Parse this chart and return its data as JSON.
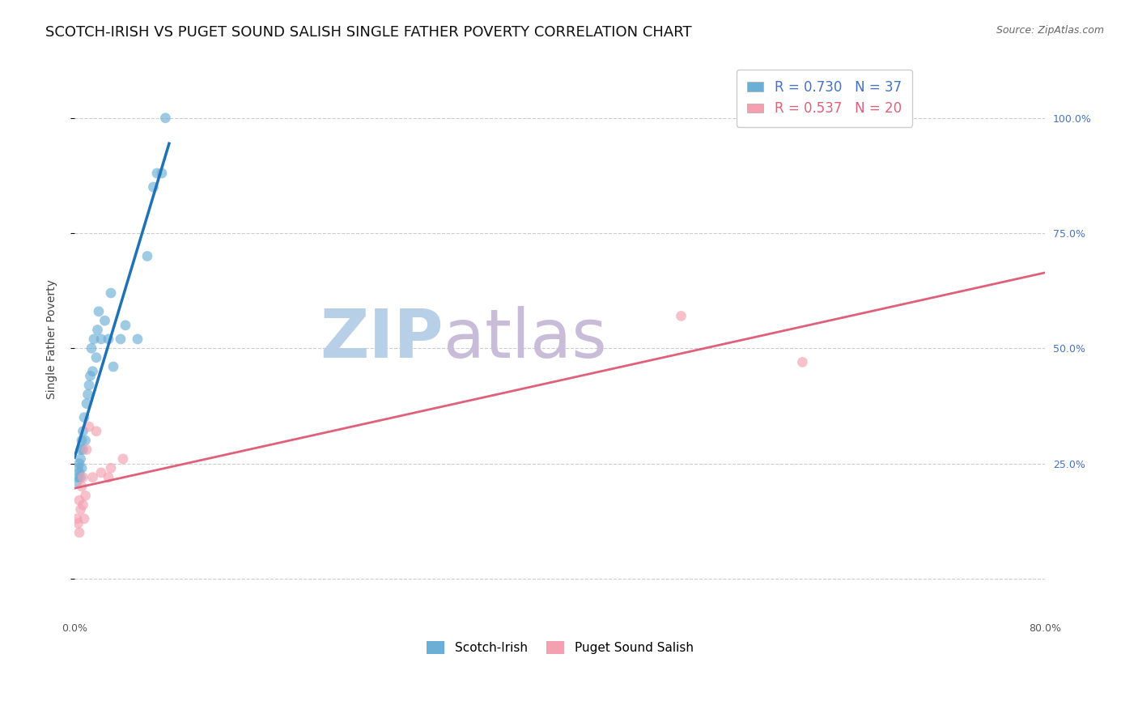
{
  "title": "SCOTCH-IRISH VS PUGET SOUND SALISH SINGLE FATHER POVERTY CORRELATION CHART",
  "source": "Source: ZipAtlas.com",
  "ylabel": "Single Father Poverty",
  "legend_label1": "Scotch-Irish",
  "legend_label2": "Puget Sound Salish",
  "r1": 0.73,
  "n1": 37,
  "r2": 0.537,
  "n2": 20,
  "color1": "#6baed6",
  "color2": "#f4a0b0",
  "line_color1": "#2171b5",
  "line_color2": "#e0607a",
  "xlim": [
    0.0,
    0.8
  ],
  "ylim": [
    -0.08,
    1.12
  ],
  "xtick_vals": [
    0.0,
    0.08,
    0.16,
    0.24,
    0.32,
    0.4,
    0.48,
    0.56,
    0.64,
    0.72,
    0.8
  ],
  "xtick_labels": [
    "0.0%",
    "",
    "",
    "",
    "",
    "",
    "",
    "",
    "",
    "",
    "80.0%"
  ],
  "ytick_vals_left": [
    0.0,
    0.25,
    0.5,
    0.75,
    1.0
  ],
  "ytick_vals_right": [
    0.25,
    0.5,
    0.75,
    1.0
  ],
  "ytick_labels_right": [
    "25.0%",
    "50.0%",
    "75.0%",
    "100.0%"
  ],
  "blue_x": [
    0.002,
    0.003,
    0.003,
    0.004,
    0.004,
    0.005,
    0.005,
    0.005,
    0.006,
    0.006,
    0.007,
    0.007,
    0.008,
    0.009,
    0.01,
    0.011,
    0.012,
    0.013,
    0.014,
    0.015,
    0.016,
    0.018,
    0.019,
    0.02,
    0.022,
    0.025,
    0.028,
    0.03,
    0.032,
    0.038,
    0.042,
    0.052,
    0.06,
    0.065,
    0.068,
    0.072,
    0.075
  ],
  "blue_y": [
    0.21,
    0.22,
    0.24,
    0.23,
    0.25,
    0.22,
    0.26,
    0.28,
    0.24,
    0.3,
    0.28,
    0.32,
    0.35,
    0.3,
    0.38,
    0.4,
    0.42,
    0.44,
    0.5,
    0.45,
    0.52,
    0.48,
    0.54,
    0.58,
    0.52,
    0.56,
    0.52,
    0.62,
    0.46,
    0.52,
    0.55,
    0.52,
    0.7,
    0.85,
    0.88,
    0.88,
    1.0
  ],
  "pink_x": [
    0.002,
    0.003,
    0.004,
    0.004,
    0.005,
    0.006,
    0.007,
    0.007,
    0.008,
    0.009,
    0.01,
    0.012,
    0.015,
    0.018,
    0.022,
    0.028,
    0.03,
    0.04,
    0.5,
    0.6
  ],
  "pink_y": [
    0.13,
    0.12,
    0.17,
    0.1,
    0.15,
    0.2,
    0.16,
    0.22,
    0.13,
    0.18,
    0.28,
    0.33,
    0.22,
    0.32,
    0.23,
    0.22,
    0.24,
    0.26,
    0.57,
    0.47
  ],
  "blue_line_x": [
    0.0,
    0.078
  ],
  "pink_line_x": [
    0.0,
    0.8
  ],
  "marker_size": 85,
  "marker_alpha": 0.65,
  "title_fontsize": 13,
  "axis_fontsize": 10,
  "tick_fontsize": 9,
  "legend_fontsize": 12,
  "right_tick_color": "#4472c4"
}
